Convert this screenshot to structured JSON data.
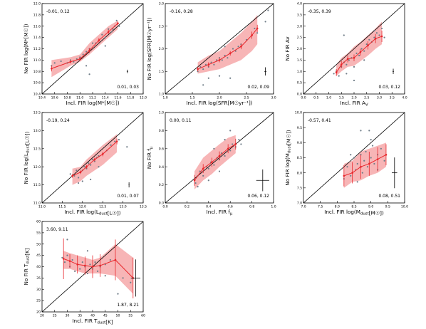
{
  "chart_data": [
    {
      "type": "scatter",
      "xlabel": "Incl. FIR log(M*[M☉])",
      "ylabel": "No FIR log(M*[M☉])",
      "xlim": [
        10.4,
        12.0
      ],
      "ylim": [
        10.4,
        12.0
      ],
      "xticks": [
        "10.4",
        "10.6",
        "10.8",
        "11.0",
        "11.2",
        "11.4",
        "11.6",
        "11.8",
        "12.0"
      ],
      "yticks": [
        "10.4",
        "10.6",
        "10.8",
        "11.0",
        "11.2",
        "11.4",
        "11.6",
        "11.8",
        "12.0"
      ],
      "annotation_top": "-0.01, 0.12",
      "annotation_bottom": "0.01, 0.03",
      "points": [
        [
          10.55,
          10.9
        ],
        [
          10.6,
          10.95
        ],
        [
          10.7,
          10.98
        ],
        [
          10.8,
          10.95
        ],
        [
          10.85,
          11.0
        ],
        [
          10.9,
          10.97
        ],
        [
          10.95,
          11.02
        ],
        [
          11.0,
          11.05
        ],
        [
          11.05,
          11.1
        ],
        [
          11.1,
          10.9
        ],
        [
          11.1,
          11.15
        ],
        [
          11.15,
          11.2
        ],
        [
          11.2,
          11.3
        ],
        [
          11.25,
          11.3
        ],
        [
          11.3,
          11.35
        ],
        [
          11.35,
          11.45
        ],
        [
          11.4,
          11.4
        ],
        [
          11.45,
          11.55
        ],
        [
          11.5,
          11.5
        ],
        [
          11.52,
          11.55
        ],
        [
          11.55,
          11.6
        ],
        [
          11.58,
          11.7
        ],
        [
          11.6,
          11.65
        ],
        [
          11.62,
          11.6
        ],
        [
          11.15,
          10.75
        ],
        [
          11.4,
          11.25
        ]
      ],
      "median_x": [
        10.55,
        10.85,
        11.0,
        11.15,
        11.3,
        11.45,
        11.6
      ],
      "median_y": [
        10.85,
        10.97,
        11.02,
        11.17,
        11.35,
        11.5,
        11.65
      ],
      "band_upper": [
        11.0,
        11.05,
        11.1,
        11.3,
        11.45,
        11.6,
        11.7
      ],
      "band_lower": [
        10.7,
        10.9,
        10.97,
        11.1,
        11.25,
        11.4,
        11.55
      ],
      "median_err": [
        0.05,
        0.03,
        0.03,
        0.04,
        0.04,
        0.04,
        0.03
      ],
      "errbar": {
        "x": 11.75,
        "y": 10.8,
        "xerr": 0.01,
        "yerr": 0.03
      }
    },
    {
      "type": "scatter",
      "xlabel": "Incl. FIR log(SFR[M☉yr⁻¹])",
      "ylabel": "No FIR log(SFR[M☉yr⁻¹])",
      "xlim": [
        1.0,
        3.0
      ],
      "ylim": [
        1.0,
        3.0
      ],
      "xticks": [
        "1.0",
        "1.5",
        "2.0",
        "2.5",
        "3.0"
      ],
      "yticks": [
        "1.0",
        "1.5",
        "2.0",
        "2.5",
        "3.0"
      ],
      "annotation_top": "-0.16, 0.28",
      "annotation_bottom": "0.02, 0.09",
      "points": [
        [
          1.6,
          1.5
        ],
        [
          1.65,
          1.6
        ],
        [
          1.7,
          1.55
        ],
        [
          1.75,
          1.65
        ],
        [
          1.8,
          1.6
        ],
        [
          1.85,
          1.7
        ],
        [
          1.9,
          1.65
        ],
        [
          1.95,
          1.75
        ],
        [
          2.0,
          1.8
        ],
        [
          2.05,
          1.75
        ],
        [
          2.1,
          1.85
        ],
        [
          2.15,
          1.8
        ],
        [
          2.2,
          1.9
        ],
        [
          2.25,
          2.0
        ],
        [
          2.3,
          1.95
        ],
        [
          2.35,
          2.05
        ],
        [
          2.4,
          2.1
        ],
        [
          2.5,
          2.2
        ],
        [
          2.6,
          2.3
        ],
        [
          2.65,
          2.45
        ],
        [
          2.7,
          2.35
        ],
        [
          2.85,
          2.6
        ],
        [
          2.0,
          1.4
        ],
        [
          2.2,
          1.35
        ],
        [
          1.7,
          1.2
        ],
        [
          1.8,
          1.35
        ],
        [
          2.1,
          2.05
        ],
        [
          2.9,
          2.85
        ]
      ],
      "median_x": [
        1.6,
        1.8,
        2.0,
        2.2,
        2.4,
        2.6,
        2.7
      ],
      "median_y": [
        1.55,
        1.65,
        1.75,
        1.9,
        2.05,
        2.3,
        2.45
      ],
      "band_upper": [
        1.7,
        1.85,
        1.95,
        2.15,
        2.35,
        2.6,
        2.75
      ],
      "band_lower": [
        1.45,
        1.5,
        1.55,
        1.65,
        1.75,
        1.95,
        2.1
      ],
      "median_err": [
        0.05,
        0.05,
        0.05,
        0.05,
        0.06,
        0.08,
        0.08
      ],
      "errbar": {
        "x": 2.85,
        "y": 1.5,
        "xerr": 0.02,
        "yerr": 0.09
      }
    },
    {
      "type": "scatter",
      "xlabel": "Incl. FIR A_V",
      "ylabel": "No FIR Av",
      "xlim": [
        0.0,
        4.0
      ],
      "ylim": [
        0.0,
        4.0
      ],
      "xticks": [
        "0.0",
        "0.5",
        "1.0",
        "1.5",
        "2.0",
        "2.5",
        "3.0",
        "3.5",
        "4.0"
      ],
      "yticks": [
        "0.0",
        "0.5",
        "1.0",
        "1.5",
        "2.0",
        "2.5",
        "3.0",
        "3.5",
        "4.0"
      ],
      "annotation_top": "-0.35, 0.39",
      "annotation_bottom": "0.03, 0.12",
      "points": [
        [
          1.2,
          0.9
        ],
        [
          1.3,
          1.0
        ],
        [
          1.4,
          0.8
        ],
        [
          1.5,
          1.2
        ],
        [
          1.6,
          1.4
        ],
        [
          1.7,
          1.3
        ],
        [
          1.8,
          1.5
        ],
        [
          1.9,
          1.6
        ],
        [
          2.0,
          1.2
        ],
        [
          2.1,
          1.8
        ],
        [
          2.2,
          1.7
        ],
        [
          2.3,
          2.0
        ],
        [
          2.4,
          1.9
        ],
        [
          2.5,
          2.2
        ],
        [
          2.6,
          2.4
        ],
        [
          2.7,
          2.3
        ],
        [
          2.8,
          2.5
        ],
        [
          2.9,
          2.7
        ],
        [
          3.0,
          2.6
        ],
        [
          3.1,
          2.9
        ],
        [
          3.2,
          2.5
        ],
        [
          1.6,
          2.6
        ],
        [
          2.8,
          2.8
        ],
        [
          2.0,
          0.6
        ],
        [
          2.4,
          1.5
        ],
        [
          1.7,
          0.9
        ]
      ],
      "median_x": [
        1.3,
        1.5,
        1.75,
        2.0,
        2.25,
        2.55,
        2.85,
        3.1
      ],
      "median_y": [
        0.95,
        1.3,
        1.55,
        1.6,
        1.85,
        2.15,
        2.45,
        2.55
      ],
      "band_upper": [
        1.3,
        1.6,
        1.8,
        2.1,
        2.3,
        2.6,
        2.9,
        3.2
      ],
      "band_lower": [
        0.8,
        1.0,
        1.2,
        1.25,
        1.45,
        1.7,
        2.0,
        2.2
      ],
      "median_err": [
        0.15,
        0.15,
        0.15,
        0.15,
        0.15,
        0.18,
        0.2,
        0.25
      ],
      "errbar": {
        "x": 3.55,
        "y": 1.0,
        "xerr": 0.03,
        "yerr": 0.12
      }
    },
    {
      "type": "scatter",
      "xlabel": "Incl. FIR log(L_dust[L☉])",
      "ylabel": "No FIR log(L_dust[L☉])",
      "xlim": [
        11.0,
        13.5
      ],
      "ylim": [
        11.0,
        13.5
      ],
      "xticks": [
        "11.0",
        "11.5",
        "12.0",
        "12.5",
        "13.0",
        "13.5"
      ],
      "yticks": [
        "11.0",
        "11.5",
        "12.0",
        "12.5",
        "13.0",
        "13.5"
      ],
      "annotation_top": "-0.19, 0.24",
      "annotation_bottom": "0.01, 0.07",
      "points": [
        [
          11.7,
          11.8
        ],
        [
          11.8,
          11.75
        ],
        [
          11.85,
          11.9
        ],
        [
          11.9,
          11.7
        ],
        [
          11.95,
          11.85
        ],
        [
          12.0,
          11.9
        ],
        [
          12.05,
          12.0
        ],
        [
          12.1,
          11.95
        ],
        [
          12.15,
          12.1
        ],
        [
          12.2,
          12.05
        ],
        [
          12.25,
          12.2
        ],
        [
          12.3,
          12.15
        ],
        [
          12.35,
          12.25
        ],
        [
          12.4,
          12.3
        ],
        [
          12.5,
          12.35
        ],
        [
          12.6,
          12.45
        ],
        [
          12.7,
          12.6
        ],
        [
          12.8,
          12.7
        ],
        [
          12.9,
          12.75
        ],
        [
          13.1,
          12.55
        ],
        [
          12.0,
          11.6
        ],
        [
          12.2,
          11.65
        ],
        [
          11.9,
          11.55
        ],
        [
          12.4,
          12.0
        ]
      ],
      "median_x": [
        11.75,
        11.95,
        12.1,
        12.3,
        12.5,
        12.85
      ],
      "median_y": [
        11.75,
        11.85,
        12.0,
        12.2,
        12.35,
        12.7
      ],
      "band_upper": [
        11.95,
        12.0,
        12.2,
        12.4,
        12.6,
        12.9
      ],
      "band_lower": [
        11.5,
        11.6,
        11.75,
        11.9,
        12.05,
        12.4
      ],
      "median_err": [
        0.05,
        0.05,
        0.05,
        0.05,
        0.06,
        0.08
      ],
      "errbar": {
        "x": 13.15,
        "y": 11.5,
        "xerr": 0.01,
        "yerr": 0.07
      }
    },
    {
      "type": "scatter",
      "xlabel": "Incl. FIR f_μ",
      "ylabel": "No FIR f_μ",
      "xlim": [
        0.0,
        1.0
      ],
      "ylim": [
        0.0,
        1.0
      ],
      "xticks": [
        "0.0",
        "0.2",
        "0.4",
        "0.6",
        "0.8",
        "1.0"
      ],
      "yticks": [
        "0.0",
        "0.2",
        "0.4",
        "0.6",
        "0.8",
        "1.0"
      ],
      "annotation_top": "0.00, 0.11",
      "annotation_bottom": "0.06, 0.12",
      "points": [
        [
          0.28,
          0.22
        ],
        [
          0.3,
          0.3
        ],
        [
          0.32,
          0.35
        ],
        [
          0.35,
          0.3
        ],
        [
          0.38,
          0.4
        ],
        [
          0.4,
          0.38
        ],
        [
          0.42,
          0.45
        ],
        [
          0.45,
          0.42
        ],
        [
          0.48,
          0.5
        ],
        [
          0.5,
          0.48
        ],
        [
          0.52,
          0.55
        ],
        [
          0.55,
          0.52
        ],
        [
          0.58,
          0.6
        ],
        [
          0.6,
          0.58
        ],
        [
          0.62,
          0.65
        ],
        [
          0.65,
          0.62
        ],
        [
          0.68,
          0.7
        ],
        [
          0.3,
          0.18
        ],
        [
          0.45,
          0.6
        ],
        [
          0.6,
          0.8
        ],
        [
          0.7,
          0.65
        ],
        [
          0.5,
          0.35
        ],
        [
          0.4,
          0.25
        ],
        [
          0.55,
          0.7
        ]
      ],
      "median_x": [
        0.27,
        0.35,
        0.43,
        0.5,
        0.58,
        0.65
      ],
      "median_y": [
        0.25,
        0.38,
        0.45,
        0.52,
        0.6,
        0.65
      ],
      "band_upper": [
        0.35,
        0.5,
        0.58,
        0.65,
        0.72,
        0.75
      ],
      "band_lower": [
        0.15,
        0.25,
        0.32,
        0.4,
        0.48,
        0.55
      ],
      "median_err": [
        0.06,
        0.05,
        0.05,
        0.05,
        0.05,
        0.06
      ],
      "errbar": {
        "x": 0.9,
        "y": 0.25,
        "xerr": 0.06,
        "yerr": 0.12
      }
    },
    {
      "type": "scatter",
      "xlabel": "Incl. FIR log(M_dust[M☉])",
      "ylabel": "No FIR log(M_dust[M☉])",
      "xlim": [
        7.0,
        10.0
      ],
      "ylim": [
        7.0,
        10.0
      ],
      "xticks": [
        "7.0",
        "7.5",
        "8.0",
        "8.5",
        "9.0",
        "9.5",
        "10.0"
      ],
      "yticks": [
        "7.0",
        "7.5",
        "8.0",
        "8.5",
        "9.0",
        "9.5",
        "10.0"
      ],
      "annotation_top": "-0.57, 0.41",
      "annotation_bottom": "0.08, 0.51",
      "points": [
        [
          8.2,
          7.8
        ],
        [
          8.3,
          8.2
        ],
        [
          8.4,
          7.9
        ],
        [
          8.5,
          8.5
        ],
        [
          8.55,
          8.1
        ],
        [
          8.6,
          8.3
        ],
        [
          8.7,
          8.6
        ],
        [
          8.75,
          8.0
        ],
        [
          8.8,
          8.4
        ],
        [
          8.85,
          8.7
        ],
        [
          8.9,
          8.2
        ],
        [
          8.95,
          9.4
        ],
        [
          9.0,
          8.5
        ],
        [
          9.05,
          8.9
        ],
        [
          9.1,
          8.3
        ],
        [
          9.2,
          8.6
        ],
        [
          9.3,
          8.8
        ],
        [
          9.4,
          8.4
        ],
        [
          8.6,
          7.7
        ],
        [
          9.0,
          9.1
        ],
        [
          8.7,
          9.4
        ],
        [
          9.2,
          8.1
        ],
        [
          8.4,
          8.6
        ]
      ],
      "median_x": [
        8.2,
        8.45,
        8.7,
        8.95,
        9.2,
        9.45
      ],
      "median_y": [
        7.9,
        8.0,
        8.2,
        8.3,
        8.45,
        8.6
      ],
      "band_upper": [
        8.3,
        8.4,
        8.7,
        8.8,
        8.9,
        9.0
      ],
      "band_lower": [
        7.5,
        7.7,
        7.75,
        7.9,
        8.0,
        8.2
      ],
      "median_err": [
        0.35,
        0.35,
        0.4,
        0.4,
        0.4,
        0.35
      ],
      "errbar": {
        "x": 9.7,
        "y": 8.0,
        "xerr": 0.08,
        "yerr": 0.51
      }
    },
    {
      "type": "scatter",
      "xlabel": "Incl. FIR T_dust[K]",
      "ylabel": "No FIR T_dust[K]",
      "xlim": [
        20,
        60
      ],
      "ylim": [
        20,
        60
      ],
      "xticks": [
        "20",
        "25",
        "30",
        "35",
        "40",
        "45",
        "50",
        "55",
        "60"
      ],
      "yticks": [
        "20",
        "25",
        "30",
        "35",
        "40",
        "45",
        "50",
        "55",
        "60"
      ],
      "annotation_top": "3.60, 9.11",
      "annotation_bottom": "1.87, 8.21",
      "points": [
        [
          28,
          44
        ],
        [
          29,
          42
        ],
        [
          30,
          45
        ],
        [
          31,
          40
        ],
        [
          32,
          43
        ],
        [
          33,
          38
        ],
        [
          34,
          41
        ],
        [
          35,
          39
        ],
        [
          36,
          42
        ],
        [
          37,
          40
        ],
        [
          38,
          37
        ],
        [
          39,
          41
        ],
        [
          40,
          39
        ],
        [
          41,
          42
        ],
        [
          42,
          38
        ],
        [
          43,
          40
        ],
        [
          45,
          41
        ],
        [
          47,
          43
        ],
        [
          50,
          28
        ],
        [
          52,
          35
        ],
        [
          55,
          33
        ],
        [
          30,
          52
        ],
        [
          38,
          47
        ],
        [
          45,
          36
        ]
      ],
      "median_x": [
        28.5,
        31,
        34,
        37,
        40,
        43,
        49,
        56
      ],
      "median_y": [
        43.5,
        42.5,
        41,
        40.5,
        40,
        40.5,
        43,
        35
      ],
      "band_upper": [
        47,
        46,
        45,
        44,
        43,
        44,
        50,
        44
      ],
      "band_lower": [
        39,
        39,
        38,
        37,
        37,
        37,
        36,
        28
      ],
      "median_err": [
        9,
        3,
        4,
        4,
        5,
        5,
        9,
        9
      ],
      "errbar": {
        "x": 57,
        "y": 35,
        "xerr": 1.87,
        "yerr": 8.21
      }
    }
  ]
}
